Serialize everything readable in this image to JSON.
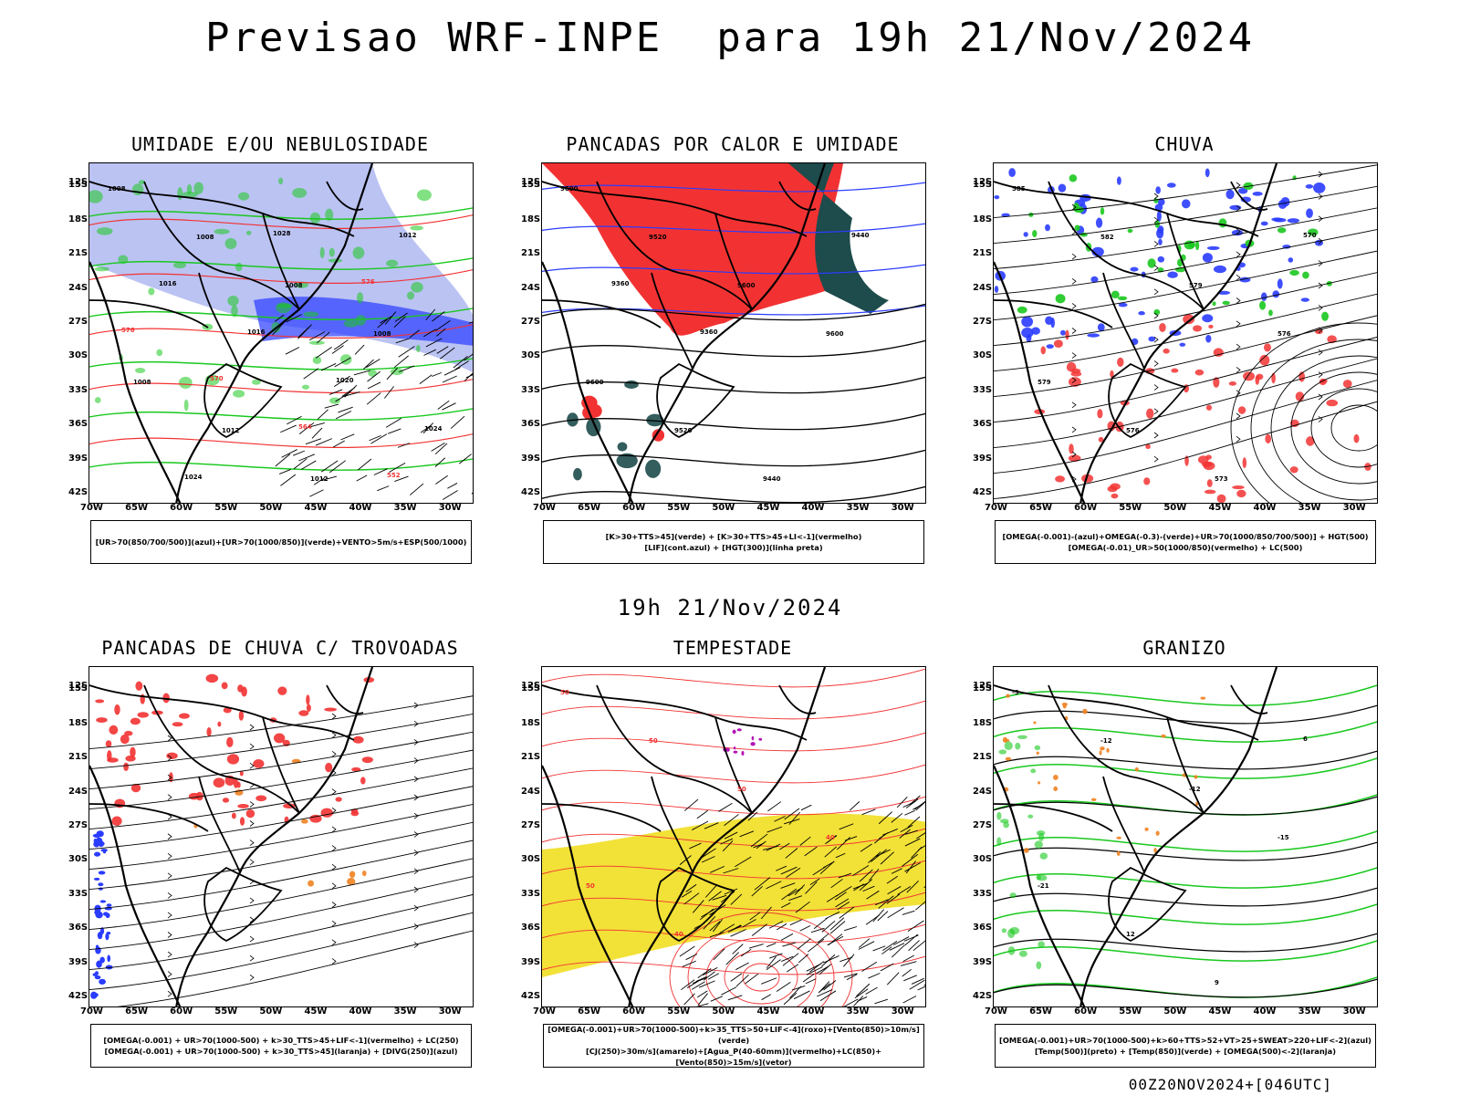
{
  "title": "Previsao WRF-INPE  para 19h 21/Nov/2024",
  "middle_title": "19h 21/Nov/2024",
  "footer": "00Z20NOV2024+[046UTC]",
  "axes": {
    "lat": [
      "12S",
      "15S",
      "18S",
      "21S",
      "24S",
      "27S",
      "30S",
      "33S",
      "36S",
      "39S",
      "42S"
    ],
    "lon": [
      "70W",
      "65W",
      "60W",
      "55W",
      "50W",
      "45W",
      "40W",
      "35W",
      "30W"
    ]
  },
  "colors": {
    "blue": "#2a3cff",
    "green": "#19c81e",
    "red": "#f23232",
    "darkteal": "#1e4b4b",
    "yellow": "#f0dc14",
    "orange": "#f08220",
    "purple": "#b414b4",
    "lavender": "#aab4f0"
  },
  "panels": [
    {
      "title": "UMIDADE E/OU NEBULOSIDADE",
      "legend": [
        "[UR>70(850/700/500)](azul)+[UR>70(1000/850)](verde)+VENTO>5m/s+ESP(500/1000)"
      ],
      "labels": [
        "1008",
        "1008",
        "1008",
        "1008",
        "1008",
        "1012",
        "1012",
        "1012",
        "1016",
        "1016",
        "1020",
        "1024",
        "1024",
        "1028",
        "576",
        "576",
        "570",
        "564",
        "552"
      ]
    },
    {
      "title": "PANCADAS POR CALOR E UMIDADE",
      "legend": [
        "[K>30+TTS>45](verde) + [K>30+TTS>45+LI<-1](vermelho)",
        "[LIF](cont.azul) + [HGT(300)](linha preta)"
      ],
      "labels": [
        "9600",
        "9520",
        "9600",
        "9600",
        "9600",
        "9520",
        "9440",
        "9440",
        "9360",
        "9360"
      ]
    },
    {
      "title": "CHUVA",
      "legend": [
        "[OMEGA(-0.001)-(azul)+OMEGA(-0.3)-(verde)+UR>70(1000/850/700/500)] + HGT(500)",
        "[OMEGA(-0.01)_UR>50(1000/850)(vermelho) + LC(500)"
      ],
      "labels": [
        "585",
        "582",
        "579",
        "576",
        "579",
        "576",
        "573",
        "570"
      ]
    },
    {
      "title": "PANCADAS DE CHUVA C/ TROVOADAS",
      "legend": [
        "[OMEGA(-0.001) + UR>70(1000-500) + k>30_TTS>45+LIF<-1](vermelho) + LC(250)",
        "[OMEGA(-0.001) + UR>70(1000-500) + k>30_TTS>45](laranja) + [DIVG(250)](azul)"
      ],
      "labels": []
    },
    {
      "title": "TEMPESTADE",
      "legend": [
        "[OMEGA(-0.001)+UR>70(1000-500)+k>35_TTS>50+LIF<-4](roxo)+[Vento(850)>10m/s](verde)",
        "[CJ(250)>30m/s](amarelo)+[Agua_P(40-60mm)](vermelho)+LC(850)+[Vento(850)>15m/s](vetor)"
      ],
      "labels": [
        "50",
        "50",
        "50",
        "40",
        "50",
        "40"
      ]
    },
    {
      "title": "GRANIZO",
      "legend": [
        "[OMEGA(-0.001)+UR>70(1000-500)+k>60+TTS>52+VT>25+SWEAT>220+LIF<-2](azul)",
        "[Temp(500)](preto) + [Temp(850)](verde) + [OMEGA(500)<-2](laranja)"
      ],
      "labels": [
        "-9",
        "-12",
        "-12",
        "-15",
        "-21",
        "12",
        "9",
        "6"
      ]
    }
  ]
}
